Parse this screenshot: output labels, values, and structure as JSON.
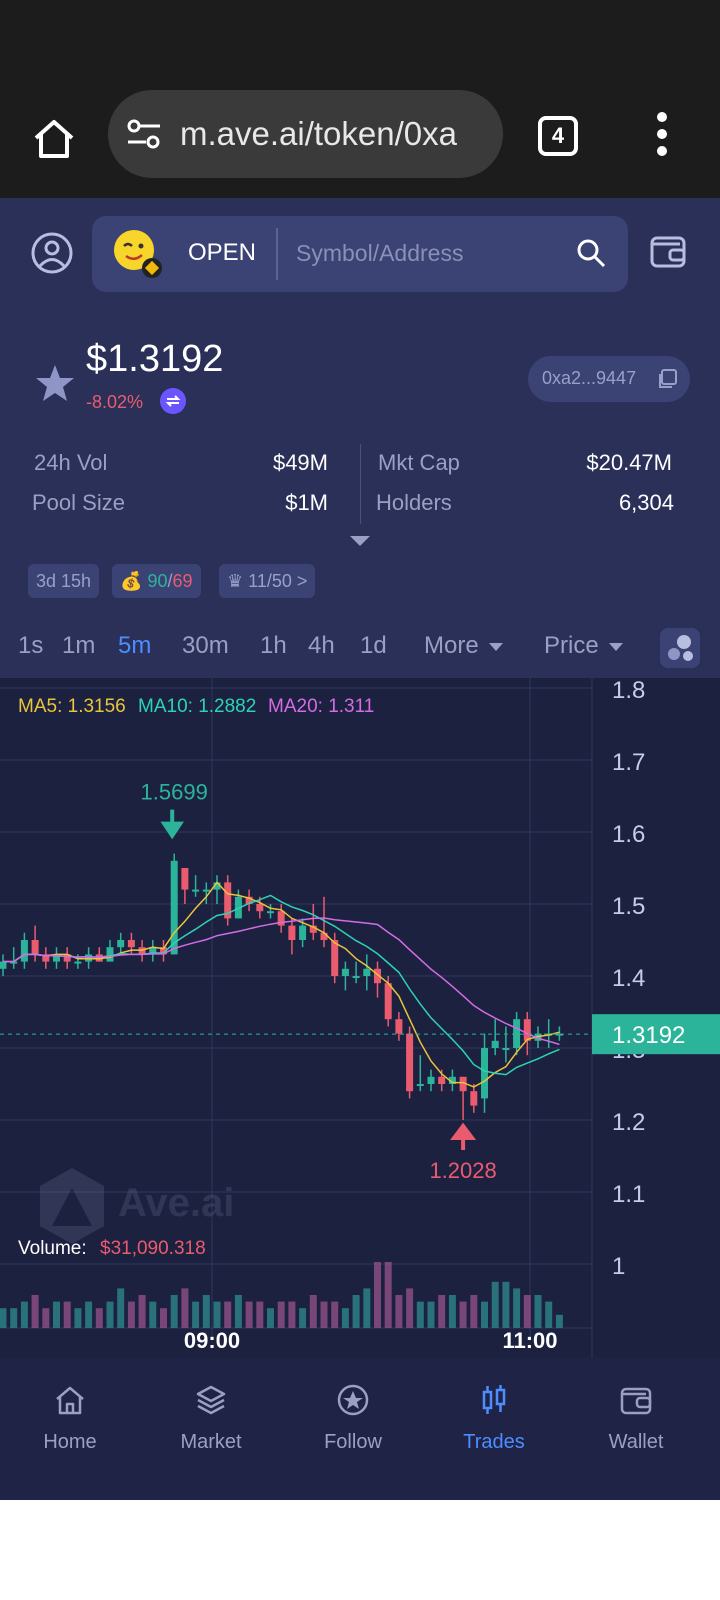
{
  "browser": {
    "url": "m.ave.ai/token/0xa",
    "tab_count": "4"
  },
  "topbar": {
    "open_label": "OPEN",
    "search_placeholder": "Symbol/Address"
  },
  "token": {
    "price": "$1.3192",
    "change": "-8.02%",
    "address": "0xa2...9447",
    "stats": {
      "vol_label": "24h Vol",
      "vol_value": "$49M",
      "mcap_label": "Mkt Cap",
      "mcap_value": "$20.47M",
      "pool_label": "Pool Size",
      "pool_value": "$1M",
      "holders_label": "Holders",
      "holders_value": "6,304"
    },
    "tags": {
      "age": "3d 15h",
      "buys": "90",
      "sells": "69",
      "rank": "11/50 >"
    }
  },
  "timeframes": {
    "items": [
      "1s",
      "1m",
      "5m",
      "30m",
      "1h",
      "4h",
      "1d"
    ],
    "active": "5m",
    "more_label": "More",
    "price_label": "Price"
  },
  "chart_data": {
    "type": "candlestick",
    "ma_legend": {
      "ma5": "MA5: 1.3156",
      "ma10": "MA10: 1.2882",
      "ma20": "MA20: 1.311"
    },
    "y_ticks": [
      "1.8",
      "1.7",
      "1.6",
      "1.5",
      "1.4",
      "1.3",
      "1.2",
      "1.1",
      "1"
    ],
    "ylim": [
      1.0,
      1.8
    ],
    "x_ticks": [
      "09:00",
      "11:00"
    ],
    "current_price": "1.3192",
    "high_label": "1.5699",
    "low_label": "1.2028",
    "volume_label": "Volume:",
    "volume_value": "$31,090.318",
    "watermark": "Ave.ai",
    "candles": [
      [
        1.41,
        1.42,
        1.43,
        1.4
      ],
      [
        1.42,
        1.42,
        1.44,
        1.41
      ],
      [
        1.42,
        1.45,
        1.46,
        1.41
      ],
      [
        1.45,
        1.43,
        1.47,
        1.42
      ],
      [
        1.43,
        1.42,
        1.44,
        1.41
      ],
      [
        1.42,
        1.43,
        1.44,
        1.41
      ],
      [
        1.43,
        1.42,
        1.44,
        1.41
      ],
      [
        1.42,
        1.42,
        1.43,
        1.41
      ],
      [
        1.42,
        1.43,
        1.44,
        1.41
      ],
      [
        1.43,
        1.42,
        1.44,
        1.42
      ],
      [
        1.42,
        1.44,
        1.45,
        1.42
      ],
      [
        1.44,
        1.45,
        1.46,
        1.43
      ],
      [
        1.45,
        1.44,
        1.46,
        1.43
      ],
      [
        1.44,
        1.43,
        1.45,
        1.42
      ],
      [
        1.43,
        1.44,
        1.45,
        1.42
      ],
      [
        1.44,
        1.43,
        1.45,
        1.42
      ],
      [
        1.43,
        1.56,
        1.57,
        1.43
      ],
      [
        1.55,
        1.52,
        1.55,
        1.5
      ],
      [
        1.52,
        1.52,
        1.54,
        1.51
      ],
      [
        1.52,
        1.52,
        1.53,
        1.5
      ],
      [
        1.52,
        1.53,
        1.54,
        1.5
      ],
      [
        1.53,
        1.48,
        1.54,
        1.47
      ],
      [
        1.48,
        1.51,
        1.52,
        1.48
      ],
      [
        1.51,
        1.5,
        1.52,
        1.49
      ],
      [
        1.5,
        1.49,
        1.51,
        1.48
      ],
      [
        1.49,
        1.49,
        1.5,
        1.48
      ],
      [
        1.49,
        1.47,
        1.5,
        1.46
      ],
      [
        1.47,
        1.45,
        1.48,
        1.43
      ],
      [
        1.45,
        1.47,
        1.48,
        1.44
      ],
      [
        1.47,
        1.46,
        1.5,
        1.45
      ],
      [
        1.46,
        1.45,
        1.51,
        1.44
      ],
      [
        1.45,
        1.4,
        1.46,
        1.39
      ],
      [
        1.4,
        1.41,
        1.42,
        1.38
      ],
      [
        1.4,
        1.4,
        1.42,
        1.39
      ],
      [
        1.4,
        1.41,
        1.43,
        1.38
      ],
      [
        1.41,
        1.39,
        1.42,
        1.37
      ],
      [
        1.39,
        1.34,
        1.4,
        1.33
      ],
      [
        1.34,
        1.32,
        1.35,
        1.31
      ],
      [
        1.32,
        1.24,
        1.33,
        1.23
      ],
      [
        1.25,
        1.25,
        1.29,
        1.24
      ],
      [
        1.25,
        1.26,
        1.27,
        1.24
      ],
      [
        1.26,
        1.25,
        1.27,
        1.24
      ],
      [
        1.25,
        1.26,
        1.27,
        1.24
      ],
      [
        1.26,
        1.24,
        1.26,
        1.2
      ],
      [
        1.24,
        1.22,
        1.25,
        1.21
      ],
      [
        1.23,
        1.3,
        1.32,
        1.21
      ],
      [
        1.3,
        1.31,
        1.34,
        1.29
      ],
      [
        1.3,
        1.3,
        1.33,
        1.28
      ],
      [
        1.3,
        1.34,
        1.35,
        1.29
      ],
      [
        1.34,
        1.31,
        1.35,
        1.29
      ],
      [
        1.31,
        1.32,
        1.33,
        1.3
      ],
      [
        1.32,
        1.32,
        1.34,
        1.3
      ],
      [
        1.32,
        1.32,
        1.33,
        1.31
      ]
    ],
    "volumes": [
      3,
      3,
      4,
      5,
      3,
      4,
      4,
      3,
      4,
      3,
      4,
      6,
      4,
      5,
      4,
      3,
      5,
      6,
      4,
      5,
      4,
      4,
      5,
      4,
      4,
      3,
      4,
      4,
      3,
      5,
      4,
      4,
      3,
      5,
      6,
      10,
      10,
      5,
      6,
      4,
      4,
      5,
      5,
      4,
      5,
      4,
      7,
      7,
      6,
      5,
      5,
      4,
      2
    ]
  },
  "bottom_nav": {
    "home": "Home",
    "market": "Market",
    "follow": "Follow",
    "trades": "Trades",
    "wallet": "Wallet"
  },
  "colors": {
    "up": "#2bb49a",
    "down": "#ea5b6e",
    "ma5": "#e8c53a",
    "ma10": "#2bd4b5",
    "ma20": "#d36ce6",
    "accent": "#4d8dff"
  }
}
